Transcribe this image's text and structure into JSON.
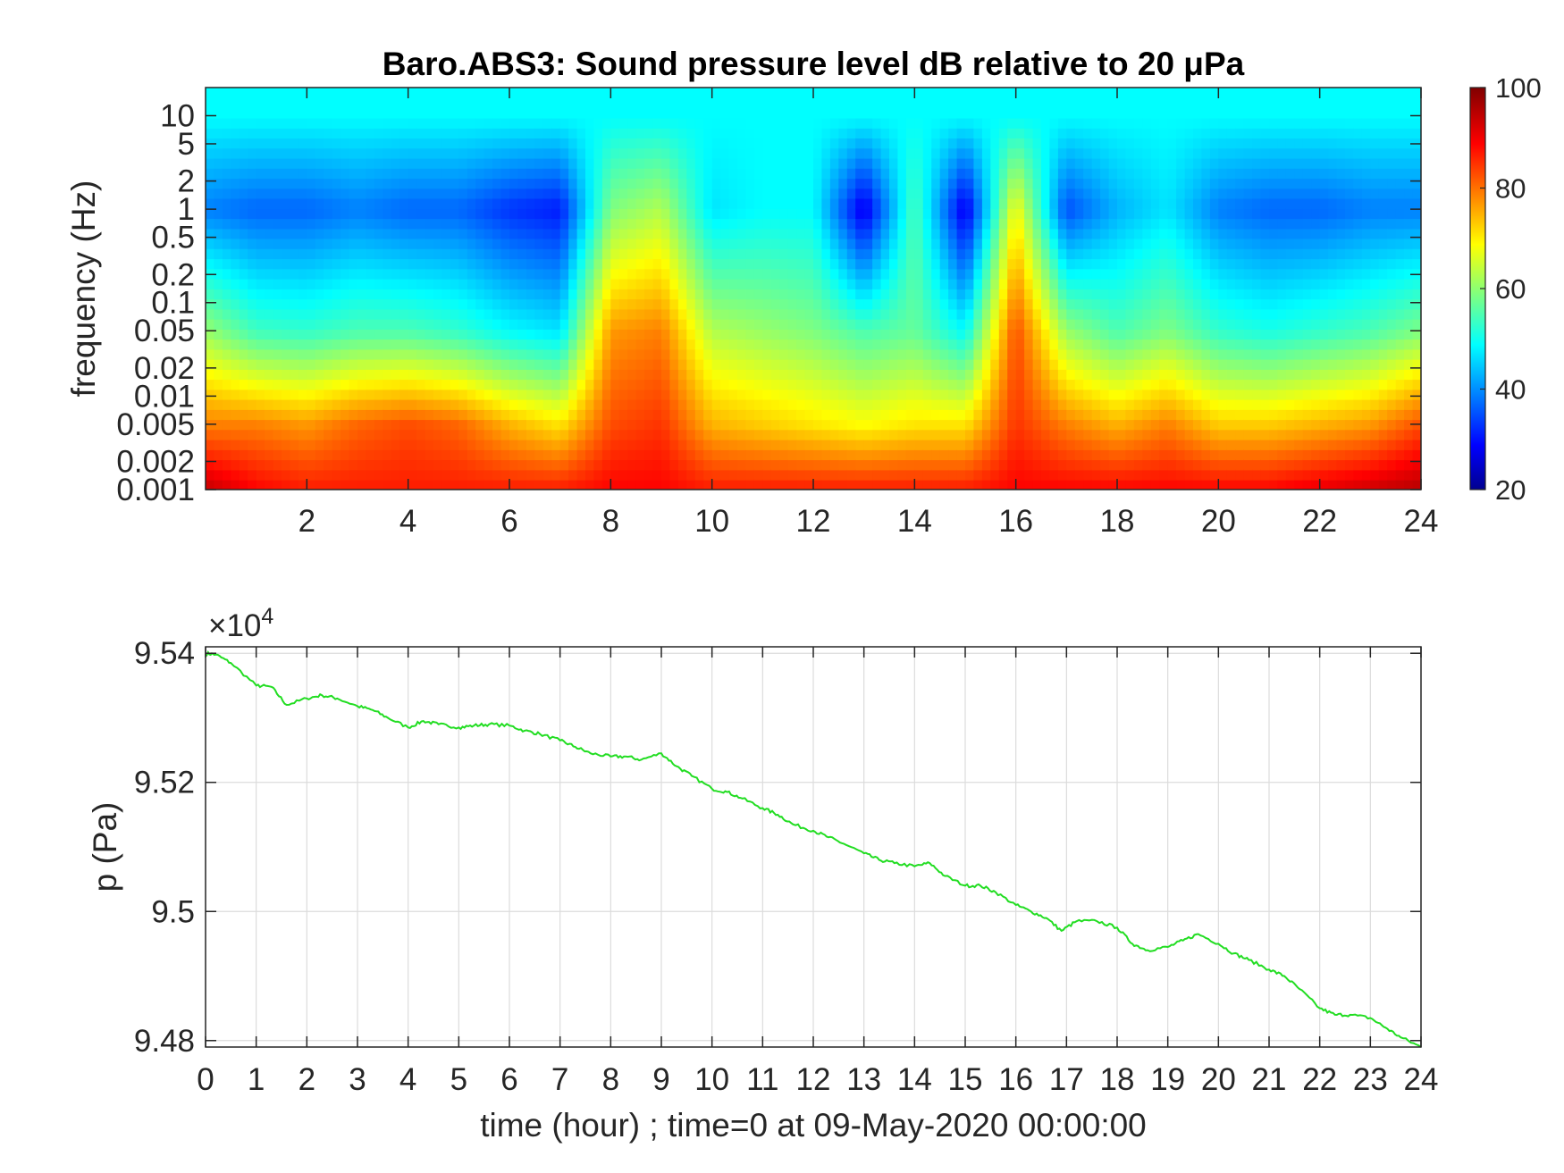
{
  "chart_data": [
    {
      "type": "heatmap",
      "title": "Baro.ABS3: Sound pressure level dB relative to 20 μPa",
      "xlabel": "",
      "ylabel": "frequency (Hz)",
      "x_range": [
        0,
        24
      ],
      "x_ticks": [
        "2",
        "4",
        "6",
        "8",
        "10",
        "12",
        "14",
        "16",
        "18",
        "20",
        "22",
        "24"
      ],
      "y_scale": "log",
      "y_range": [
        0.001,
        20
      ],
      "y_ticks": [
        "0.001",
        "0.002",
        "0.005",
        "0.01",
        "0.02",
        "0.05",
        "0.1",
        "0.2",
        "0.5",
        "1",
        "2",
        "5",
        "10"
      ],
      "colorbar": {
        "range": [
          20,
          100
        ],
        "ticks": [
          "20",
          "40",
          "60",
          "80",
          "100"
        ],
        "colormap": "jet"
      },
      "sound_pressure_level_dB_by_hour": {
        "hour": [
          0,
          1,
          2,
          3,
          4,
          5,
          6,
          7,
          8,
          9,
          10,
          11,
          12,
          13,
          14,
          15,
          16,
          17,
          18,
          19,
          20,
          21,
          22,
          23,
          24
        ],
        "at_0.001Hz": [
          95,
          90,
          88,
          88,
          88,
          88,
          88,
          88,
          90,
          90,
          88,
          88,
          88,
          88,
          88,
          88,
          90,
          90,
          90,
          90,
          90,
          90,
          92,
          94,
          96
        ],
        "at_0.005Hz": [
          80,
          80,
          78,
          82,
          84,
          82,
          76,
          72,
          84,
          86,
          76,
          74,
          72,
          70,
          72,
          72,
          86,
          80,
          76,
          80,
          74,
          74,
          76,
          78,
          84
        ],
        "at_0.05Hz": [
          62,
          55,
          54,
          56,
          56,
          54,
          50,
          48,
          78,
          80,
          64,
          62,
          60,
          56,
          58,
          50,
          84,
          62,
          56,
          60,
          54,
          52,
          54,
          56,
          60
        ],
        "at_1Hz": [
          40,
          38,
          38,
          40,
          38,
          38,
          34,
          32,
          60,
          64,
          48,
          50,
          50,
          28,
          56,
          28,
          70,
          36,
          44,
          48,
          40,
          38,
          38,
          40,
          40
        ],
        "at_10Hz": [
          50,
          50,
          50,
          50,
          50,
          50,
          50,
          50,
          50,
          50,
          50,
          50,
          50,
          50,
          50,
          50,
          50,
          50,
          50,
          50,
          50,
          50,
          50,
          50,
          50
        ]
      }
    },
    {
      "type": "line",
      "xlabel": "time (hour) ; time=0 at 09-May-2020 00:00:00",
      "ylabel": "p (Pa)",
      "y_exponent_label": "×10",
      "y_exponent": "4",
      "x_range": [
        0,
        24
      ],
      "y_range": [
        94790,
        95410
      ],
      "x_ticks": [
        "0",
        "1",
        "2",
        "3",
        "4",
        "5",
        "6",
        "7",
        "8",
        "9",
        "10",
        "11",
        "12",
        "13",
        "14",
        "15",
        "16",
        "17",
        "18",
        "19",
        "20",
        "21",
        "22",
        "23",
        "24"
      ],
      "y_ticks": [
        "9.48",
        "9.5",
        "9.52",
        "9.54"
      ],
      "y_tick_values": [
        94800,
        95000,
        95200,
        95400
      ],
      "grid": true,
      "line_color": "#22dd22",
      "series": [
        {
          "x": [
            0,
            0.2,
            0.5,
            1.0,
            1.3,
            1.6,
            2.0,
            2.3,
            2.6,
            3.0,
            3.3,
            3.6,
            4.0,
            4.3,
            4.6,
            5.0,
            5.3,
            5.6,
            6.0,
            6.3,
            6.6,
            7.0,
            7.3,
            7.6,
            8.0,
            8.3,
            8.6,
            9.0,
            9.3,
            9.6,
            10.0,
            10.3,
            10.6,
            11.0,
            11.3,
            11.6,
            12.0,
            12.3,
            12.6,
            13.0,
            13.3,
            13.6,
            14.0,
            14.3,
            14.6,
            15.0,
            15.3,
            15.6,
            16.0,
            16.3,
            16.6,
            16.9,
            17.2,
            17.6,
            18.0,
            18.3,
            18.6,
            19.0,
            19.3,
            19.6,
            20.0,
            20.3,
            20.6,
            21.0,
            21.3,
            21.6,
            22.0,
            22.3,
            22.6,
            23.0,
            23.3,
            23.6,
            24.0
          ],
          "y": [
            95400,
            95398,
            95385,
            95350,
            95348,
            95320,
            95330,
            95335,
            95330,
            95318,
            95312,
            95300,
            95285,
            95295,
            95290,
            95285,
            95288,
            95290,
            95288,
            95280,
            95275,
            95265,
            95255,
            95245,
            95240,
            95240,
            95235,
            95245,
            95225,
            95210,
            95190,
            95185,
            95175,
            95160,
            95150,
            95135,
            95125,
            95115,
            95105,
            95090,
            95080,
            95075,
            95070,
            95075,
            95055,
            95040,
            95040,
            95030,
            95010,
            95000,
            94990,
            94970,
            94985,
            94985,
            94975,
            94950,
            94940,
            94945,
            94955,
            94965,
            94950,
            94935,
            94925,
            94910,
            94900,
            94880,
            94850,
            94840,
            94840,
            94835,
            94820,
            94805,
            94790
          ]
        }
      ]
    }
  ]
}
